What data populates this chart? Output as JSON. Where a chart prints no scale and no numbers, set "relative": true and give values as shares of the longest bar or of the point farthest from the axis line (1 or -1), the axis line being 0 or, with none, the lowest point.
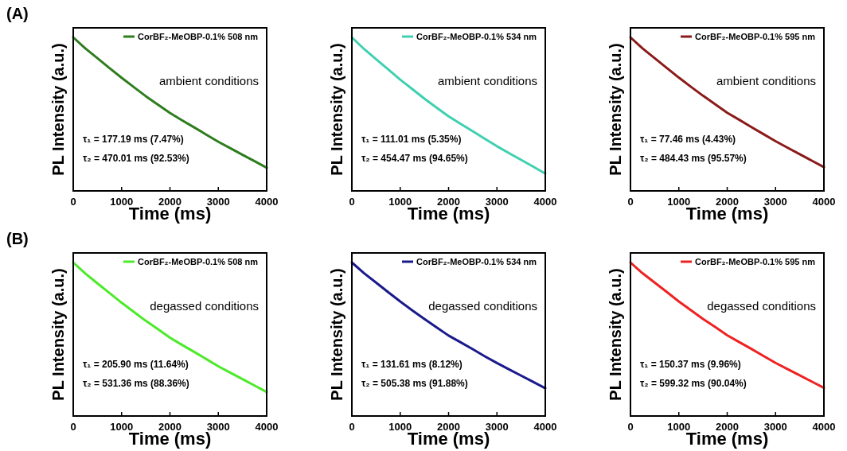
{
  "chart_data": [
    {
      "type": "line",
      "title": "(A)",
      "xlabel": "Time (ms)",
      "ylabel": "PL Intensity (a.u.)",
      "relative": true,
      "legend": "top right",
      "xlim": [
        0,
        4000
      ],
      "xticks": [
        0,
        1000,
        2000,
        3000,
        4000
      ],
      "x": [
        0,
        250,
        500,
        750,
        1000,
        1250,
        1500,
        1750,
        2000,
        2250,
        2500,
        2750,
        3000,
        3250,
        3500,
        3750,
        4000
      ],
      "series": [
        {
          "name": "CorBF₂-MeOBP-0.1% 508 nm",
          "color": "#2e7d1e",
          "values": [
            1,
            0.928,
            0.865,
            0.8,
            0.737,
            0.677,
            0.617,
            0.562,
            0.508,
            0.46,
            0.414,
            0.367,
            0.32,
            0.278,
            0.235,
            0.194,
            0.151
          ]
        }
      ],
      "annotations": [
        "ambient conditions",
        "τ₁ = 177.19 ms (7.47%)",
        "τ₂ = 470.01 ms (92.53%)"
      ]
    },
    {
      "type": "line",
      "xlabel": "Time (ms)",
      "ylabel": "PL Intensity (a.u.)",
      "relative": true,
      "legend": "top right",
      "xlim": [
        0,
        4000
      ],
      "xticks": [
        0,
        1000,
        2000,
        3000,
        4000
      ],
      "x": [
        0,
        250,
        500,
        750,
        1000,
        1250,
        1500,
        1750,
        2000,
        2250,
        2500,
        2750,
        3000,
        3250,
        3500,
        3750,
        4000
      ],
      "series": [
        {
          "name": "CorBF₂-MeOBP-0.1% 534 nm",
          "color": "#3fd0b0",
          "values": [
            1,
            0.925,
            0.858,
            0.792,
            0.725,
            0.663,
            0.601,
            0.543,
            0.486,
            0.437,
            0.389,
            0.339,
            0.291,
            0.246,
            0.202,
            0.158,
            0.113
          ]
        }
      ],
      "annotations": [
        "ambient conditions",
        "τ₁ = 111.01 ms (5.35%)",
        "τ₂ = 454.47 ms (94.65%)"
      ]
    },
    {
      "type": "line",
      "xlabel": "Time (ms)",
      "ylabel": "PL Intensity (a.u.)",
      "relative": true,
      "legend": "top right",
      "xlim": [
        0,
        4000
      ],
      "xticks": [
        0,
        1000,
        2000,
        3000,
        4000
      ],
      "x": [
        0,
        250,
        500,
        750,
        1000,
        1250,
        1500,
        1750,
        2000,
        2250,
        2500,
        2750,
        3000,
        3250,
        3500,
        3750,
        4000
      ],
      "series": [
        {
          "name": "CorBF₂-MeOBP-0.1% 595 nm",
          "color": "#8b1a1a",
          "values": [
            1,
            0.928,
            0.865,
            0.801,
            0.738,
            0.678,
            0.62,
            0.565,
            0.509,
            0.463,
            0.416,
            0.37,
            0.324,
            0.281,
            0.239,
            0.197,
            0.155
          ]
        }
      ],
      "annotations": [
        "ambient conditions",
        "τ₁ = 77.46 ms (4.43%)",
        "τ₂ = 484.43 ms (95.57%)"
      ]
    },
    {
      "type": "line",
      "title": "(B)",
      "xlabel": "Time (ms)",
      "ylabel": "PL Intensity (a.u.)",
      "relative": true,
      "legend": "top right",
      "xlim": [
        0,
        4000
      ],
      "xticks": [
        0,
        1000,
        2000,
        3000,
        4000
      ],
      "x": [
        0,
        250,
        500,
        750,
        1000,
        1250,
        1500,
        1750,
        2000,
        2250,
        2500,
        2750,
        3000,
        3250,
        3500,
        3750,
        4000
      ],
      "series": [
        {
          "name": "CorBF₂-MeOBP-0.1% 508 nm",
          "color": "#4cea2a",
          "values": [
            1,
            0.928,
            0.864,
            0.801,
            0.738,
            0.679,
            0.62,
            0.566,
            0.51,
            0.463,
            0.418,
            0.371,
            0.324,
            0.282,
            0.24,
            0.198,
            0.156
          ]
        }
      ],
      "annotations": [
        "degassed conditions",
        "τ₁ = 205.90 ms (11.64%)",
        "τ₂ = 531.36 ms (88.36%)"
      ]
    },
    {
      "type": "line",
      "xlabel": "Time (ms)",
      "ylabel": "PL Intensity (a.u.)",
      "relative": true,
      "legend": "top right",
      "xlim": [
        0,
        4000
      ],
      "xticks": [
        0,
        1000,
        2000,
        3000,
        4000
      ],
      "x": [
        0,
        250,
        500,
        750,
        1000,
        1250,
        1500,
        1750,
        2000,
        2250,
        2500,
        2750,
        3000,
        3250,
        3500,
        3750,
        4000
      ],
      "series": [
        {
          "name": "CorBF₂-MeOBP-0.1% 534 nm",
          "color": "#1a1a8c",
          "values": [
            1,
            0.931,
            0.869,
            0.807,
            0.746,
            0.688,
            0.632,
            0.578,
            0.524,
            0.48,
            0.435,
            0.389,
            0.345,
            0.304,
            0.263,
            0.222,
            0.181
          ]
        }
      ],
      "annotations": [
        "degassed conditions",
        "τ₁ = 131.61 ms (8.12%)",
        "τ₂ = 505.38 ms (91.88%)"
      ]
    },
    {
      "type": "line",
      "xlabel": "Time (ms)",
      "ylabel": "PL Intensity (a.u.)",
      "relative": true,
      "legend": "top right",
      "xlim": [
        0,
        4000
      ],
      "xticks": [
        0,
        1000,
        2000,
        3000,
        4000
      ],
      "x": [
        0,
        250,
        500,
        750,
        1000,
        1250,
        1500,
        1750,
        2000,
        2250,
        2500,
        2750,
        3000,
        3250,
        3500,
        3750,
        4000
      ],
      "series": [
        {
          "name": "CorBF₂-MeOBP-0.1% 595 nm",
          "color": "#ee2222",
          "values": [
            1,
            0.93,
            0.869,
            0.808,
            0.746,
            0.689,
            0.632,
            0.58,
            0.526,
            0.481,
            0.437,
            0.391,
            0.346,
            0.305,
            0.265,
            0.224,
            0.183
          ]
        }
      ],
      "annotations": [
        "degassed conditions",
        "τ₁ = 150.37 ms (9.96%)",
        "τ₂ = 599.32 ms (90.04%)"
      ]
    }
  ]
}
